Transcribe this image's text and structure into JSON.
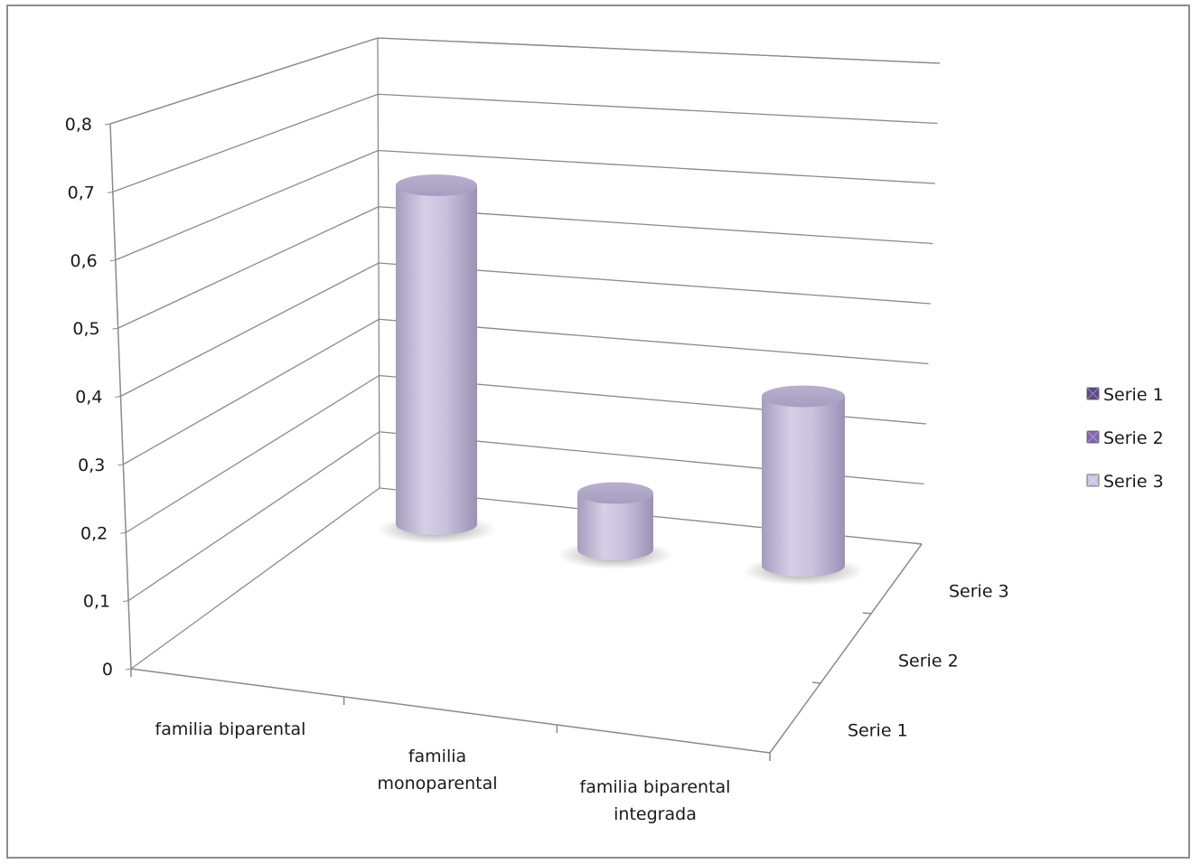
{
  "chart_data": {
    "type": "bar",
    "subtype": "3d-cylinder",
    "title": "",
    "xlabel": "",
    "ylabel": "",
    "categories": [
      "familia biparental",
      "familia monoparental",
      "familia biparental integrada"
    ],
    "category_label_lines": [
      [
        "familia biparental"
      ],
      [
        "familia",
        "monoparental"
      ],
      [
        "familia biparental",
        "integrada"
      ]
    ],
    "depth_categories": [
      "Serie 1",
      "Serie 2",
      "Serie 3"
    ],
    "y_ticks": [
      "0",
      "0,1",
      "0,2",
      "0,3",
      "0,4",
      "0,5",
      "0,6",
      "0,7",
      "0,8"
    ],
    "ylim": [
      0,
      0.8
    ],
    "grid": true,
    "legend_position": "right",
    "series": [
      {
        "name": "Serie 1",
        "values": [
          0.6,
          0.1,
          0.3
        ],
        "color": "#5e4a8a"
      },
      {
        "name": "Serie 2",
        "values": [
          null,
          null,
          null
        ],
        "color": "#8366b0"
      },
      {
        "name": "Serie 3",
        "values": [
          null,
          null,
          null
        ],
        "color": "#cfc3e0"
      }
    ],
    "bar_color": "#c5bdd8"
  }
}
